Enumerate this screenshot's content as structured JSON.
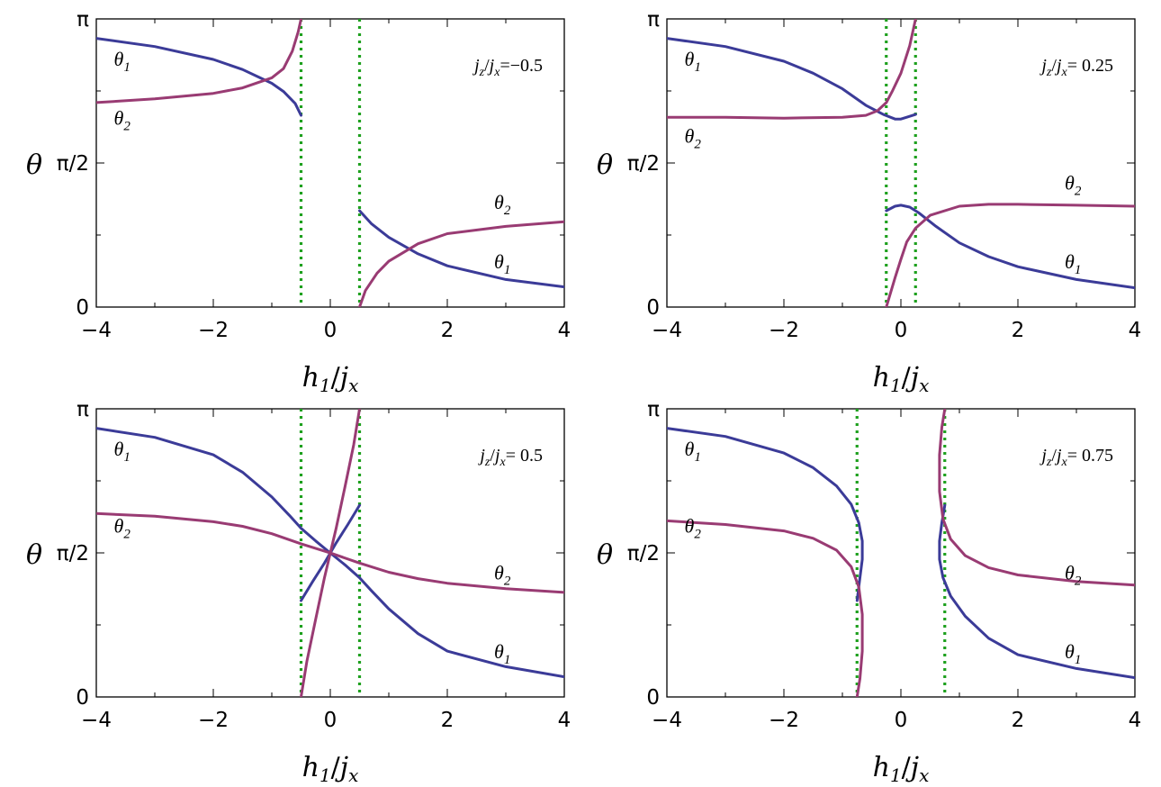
{
  "colors": {
    "theta1": "#3b3b98",
    "theta2": "#993b73",
    "critical": "#1ea01e"
  },
  "chart_data": [
    {
      "type": "line",
      "annotation": "j_z/j_x=−0.5",
      "xlabel": "h_1/j_x",
      "ylabel": "θ",
      "xlim": [
        -4,
        4
      ],
      "ylim": [
        0,
        3.1416
      ],
      "xticks": [
        "−4",
        "−2",
        "0",
        "2",
        "4"
      ],
      "yticks": [
        "0",
        "π/2",
        "π"
      ],
      "critical_lines": [
        -0.5,
        0.5
      ],
      "series": [
        {
          "name": "θ1",
          "color_key": "theta1",
          "segments": [
            [
              [
                -4,
                2.93
              ],
              [
                -3,
                2.84
              ],
              [
                -2,
                2.7
              ],
              [
                -1.5,
                2.59
              ],
              [
                -1.2,
                2.5
              ],
              [
                -1,
                2.44
              ],
              [
                -0.8,
                2.35
              ],
              [
                -0.6,
                2.22
              ],
              [
                -0.5,
                2.09
              ]
            ],
            [
              [
                0.5,
                1.05
              ],
              [
                0.7,
                0.91
              ],
              [
                1,
                0.76
              ],
              [
                1.5,
                0.58
              ],
              [
                2,
                0.45
              ],
              [
                3,
                0.3
              ],
              [
                4,
                0.22
              ]
            ]
          ],
          "labels": [
            {
              "text": "θ1",
              "x": -3.7,
              "y": 2.63
            },
            {
              "text": "θ1",
              "x": 2.8,
              "y": 0.42
            }
          ]
        },
        {
          "name": "θ2",
          "color_key": "theta2",
          "segments": [
            [
              [
                -4,
                2.23
              ],
              [
                -3,
                2.27
              ],
              [
                -2,
                2.33
              ],
              [
                -1.5,
                2.39
              ],
              [
                -1,
                2.5
              ],
              [
                -0.8,
                2.6
              ],
              [
                -0.65,
                2.79
              ],
              [
                -0.55,
                3.0
              ],
              [
                -0.5,
                3.14
              ]
            ],
            [
              [
                0.5,
                0.0
              ],
              [
                0.6,
                0.18
              ],
              [
                0.8,
                0.37
              ],
              [
                1,
                0.5
              ],
              [
                1.5,
                0.69
              ],
              [
                2,
                0.8
              ],
              [
                3,
                0.88
              ],
              [
                4,
                0.93
              ]
            ]
          ],
          "labels": [
            {
              "text": "θ2",
              "x": -3.7,
              "y": 1.99
            },
            {
              "text": "θ2",
              "x": 2.8,
              "y": 1.07
            }
          ]
        }
      ]
    },
    {
      "type": "line",
      "annotation": "j_z/j_x= 0.25",
      "xlabel": "h_1/j_x",
      "ylabel": "θ",
      "xlim": [
        -4,
        4
      ],
      "ylim": [
        0,
        3.1416
      ],
      "xticks": [
        "−4",
        "−2",
        "0",
        "2",
        "4"
      ],
      "yticks": [
        "0",
        "π/2",
        "π"
      ],
      "critical_lines": [
        -0.25,
        0.25
      ],
      "series": [
        {
          "name": "θ1",
          "color_key": "theta1",
          "segments": [
            [
              [
                -4,
                2.93
              ],
              [
                -3,
                2.84
              ],
              [
                -2,
                2.68
              ],
              [
                -1.5,
                2.55
              ],
              [
                -1,
                2.38
              ],
              [
                -0.6,
                2.2
              ],
              [
                -0.3,
                2.1
              ],
              [
                -0.1,
                2.05
              ],
              [
                0,
                2.05
              ],
              [
                0.1,
                2.07
              ],
              [
                0.25,
                2.1
              ]
            ],
            [
              [
                -0.25,
                1.05
              ],
              [
                -0.1,
                1.1
              ],
              [
                0,
                1.11
              ],
              [
                0.15,
                1.09
              ],
              [
                0.3,
                1.03
              ],
              [
                0.6,
                0.88
              ],
              [
                1,
                0.7
              ],
              [
                1.5,
                0.55
              ],
              [
                2,
                0.44
              ],
              [
                3,
                0.3
              ],
              [
                4,
                0.21
              ]
            ]
          ],
          "labels": [
            {
              "text": "θ1",
              "x": -3.7,
              "y": 2.63
            },
            {
              "text": "θ1",
              "x": 2.8,
              "y": 0.42
            }
          ]
        },
        {
          "name": "θ2",
          "color_key": "theta2",
          "segments": [
            [
              [
                -4,
                2.07
              ],
              [
                -3,
                2.07
              ],
              [
                -2,
                2.06
              ],
              [
                -1,
                2.07
              ],
              [
                -0.6,
                2.09
              ],
              [
                -0.4,
                2.14
              ],
              [
                -0.25,
                2.23
              ],
              [
                -0.15,
                2.35
              ],
              [
                0,
                2.55
              ],
              [
                0.15,
                2.85
              ],
              [
                0.25,
                3.14
              ]
            ],
            [
              [
                -0.25,
                0.0
              ],
              [
                -0.1,
                0.32
              ],
              [
                0,
                0.52
              ],
              [
                0.1,
                0.71
              ],
              [
                0.25,
                0.86
              ],
              [
                0.5,
                1.0
              ],
              [
                1,
                1.1
              ],
              [
                1.5,
                1.12
              ],
              [
                2,
                1.12
              ],
              [
                3,
                1.11
              ],
              [
                4,
                1.1
              ]
            ]
          ],
          "labels": [
            {
              "text": "θ2",
              "x": -3.7,
              "y": 1.79
            },
            {
              "text": "θ2",
              "x": 2.8,
              "y": 1.28
            }
          ]
        }
      ]
    },
    {
      "type": "line",
      "annotation": "j_z/j_x= 0.5",
      "xlabel": "h_1/j_x",
      "ylabel": "θ",
      "xlim": [
        -4,
        4
      ],
      "ylim": [
        0,
        3.1416
      ],
      "xticks": [
        "−4",
        "−2",
        "0",
        "2",
        "4"
      ],
      "yticks": [
        "0",
        "π/2",
        "π"
      ],
      "critical_lines": [
        -0.5,
        0.5
      ],
      "series": [
        {
          "name": "θ1",
          "color_key": "theta1",
          "segments": [
            [
              [
                -4,
                2.93
              ],
              [
                -3,
                2.83
              ],
              [
                -2,
                2.64
              ],
              [
                -1.5,
                2.45
              ],
              [
                -1,
                2.18
              ],
              [
                -0.7,
                1.98
              ],
              [
                -0.5,
                1.84
              ],
              [
                -0.25,
                1.7
              ],
              [
                0,
                1.57
              ],
              [
                0.25,
                1.44
              ],
              [
                0.5,
                1.3
              ],
              [
                0.7,
                1.16
              ],
              [
                1,
                0.96
              ],
              [
                1.5,
                0.69
              ],
              [
                2,
                0.5
              ],
              [
                3,
                0.33
              ],
              [
                4,
                0.22
              ]
            ],
            [
              [
                -0.5,
                1.05
              ],
              [
                -0.3,
                1.26
              ],
              [
                -0.1,
                1.46
              ],
              [
                0,
                1.57
              ],
              [
                0.1,
                1.68
              ],
              [
                0.3,
                1.88
              ],
              [
                0.5,
                2.09
              ]
            ]
          ],
          "labels": [
            {
              "text": "θ1",
              "x": -3.7,
              "y": 2.63
            },
            {
              "text": "θ1",
              "x": 2.8,
              "y": 0.42
            }
          ]
        },
        {
          "name": "θ2",
          "color_key": "theta2",
          "segments": [
            [
              [
                -4,
                2.0
              ],
              [
                -3,
                1.97
              ],
              [
                -2,
                1.91
              ],
              [
                -1.5,
                1.86
              ],
              [
                -1,
                1.78
              ],
              [
                -0.5,
                1.67
              ],
              [
                0,
                1.57
              ],
              [
                0.5,
                1.46
              ],
              [
                1,
                1.36
              ],
              [
                1.5,
                1.29
              ],
              [
                2,
                1.24
              ],
              [
                3,
                1.18
              ],
              [
                4,
                1.14
              ]
            ],
            [
              [
                -0.5,
                0.0
              ],
              [
                -0.4,
                0.39
              ],
              [
                -0.25,
                0.85
              ],
              [
                -0.1,
                1.3
              ],
              [
                0,
                1.57
              ],
              [
                0.1,
                1.84
              ],
              [
                0.25,
                2.29
              ],
              [
                0.4,
                2.75
              ],
              [
                0.5,
                3.14
              ]
            ]
          ],
          "labels": [
            {
              "text": "θ2",
              "x": -3.7,
              "y": 1.79
            },
            {
              "text": "θ2",
              "x": 2.8,
              "y": 1.28
            }
          ]
        }
      ]
    },
    {
      "type": "line",
      "annotation": "j_z/j_x= 0.75",
      "xlabel": "h_1/j_x",
      "ylabel": "θ",
      "xlim": [
        -4,
        4
      ],
      "ylim": [
        0,
        3.1416
      ],
      "xticks": [
        "−4",
        "−2",
        "0",
        "2",
        "4"
      ],
      "yticks": [
        "0",
        "π/2",
        "π"
      ],
      "critical_lines": [
        -0.75,
        0.75
      ],
      "series": [
        {
          "name": "θ1",
          "color_key": "theta1",
          "segments": [
            [
              [
                -4,
                2.93
              ],
              [
                -3,
                2.84
              ],
              [
                -2,
                2.66
              ],
              [
                -1.5,
                2.5
              ],
              [
                -1.1,
                2.3
              ],
              [
                -0.85,
                2.1
              ],
              [
                -0.72,
                1.9
              ],
              [
                -0.66,
                1.7
              ],
              [
                -0.66,
                1.5
              ],
              [
                -0.7,
                1.3
              ],
              [
                -0.75,
                1.05
              ]
            ],
            [
              [
                0.75,
                2.09
              ],
              [
                0.7,
                1.9
              ],
              [
                0.66,
                1.7
              ],
              [
                0.66,
                1.5
              ],
              [
                0.72,
                1.3
              ],
              [
                0.85,
                1.1
              ],
              [
                1.1,
                0.88
              ],
              [
                1.5,
                0.64
              ],
              [
                2,
                0.46
              ],
              [
                3,
                0.31
              ],
              [
                4,
                0.21
              ]
            ]
          ],
          "labels": [
            {
              "text": "θ1",
              "x": -3.7,
              "y": 2.63
            },
            {
              "text": "θ1",
              "x": 2.8,
              "y": 0.42
            }
          ]
        },
        {
          "name": "θ2",
          "color_key": "theta2",
          "segments": [
            [
              [
                -4,
                1.92
              ],
              [
                -3,
                1.88
              ],
              [
                -2,
                1.81
              ],
              [
                -1.5,
                1.73
              ],
              [
                -1.1,
                1.6
              ],
              [
                -0.85,
                1.42
              ],
              [
                -0.72,
                1.2
              ],
              [
                -0.66,
                0.9
              ],
              [
                -0.66,
                0.5
              ],
              [
                -0.7,
                0.2
              ],
              [
                -0.75,
                0.0
              ]
            ],
            [
              [
                0.75,
                3.14
              ],
              [
                0.7,
                2.94
              ],
              [
                0.66,
                2.64
              ],
              [
                0.66,
                2.24
              ],
              [
                0.72,
                1.94
              ],
              [
                0.85,
                1.72
              ],
              [
                1.1,
                1.54
              ],
              [
                1.5,
                1.41
              ],
              [
                2,
                1.33
              ],
              [
                3,
                1.26
              ],
              [
                4,
                1.22
              ]
            ]
          ],
          "labels": [
            {
              "text": "θ2",
              "x": -3.7,
              "y": 1.79
            },
            {
              "text": "θ2",
              "x": 2.8,
              "y": 1.28
            }
          ]
        }
      ]
    }
  ]
}
